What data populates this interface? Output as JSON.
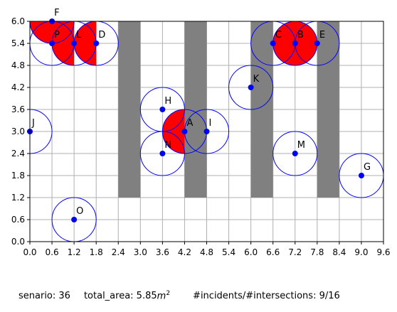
{
  "chart_data": {
    "type": "scatter",
    "xlim": [
      0,
      9.6
    ],
    "ylim": [
      0,
      6.0
    ],
    "grid": true,
    "x_ticks": [
      0.0,
      0.6,
      1.2,
      1.8,
      2.4,
      3.0,
      3.6,
      4.2,
      4.8,
      5.4,
      6.0,
      6.6,
      7.2,
      7.8,
      8.4,
      9.0,
      9.6
    ],
    "y_ticks": [
      0.0,
      0.6,
      1.2,
      1.8,
      2.4,
      3.0,
      3.6,
      4.2,
      4.8,
      5.4,
      6.0
    ],
    "x_tick_labels": [
      "0.0",
      "0.6",
      "1.2",
      "1.8",
      "2.4",
      "3.0",
      "3.6",
      "4.2",
      "4.8",
      "5.4",
      "6.0",
      "6.6",
      "7.2",
      "7.8",
      "8.4",
      "9.0",
      "9.6"
    ],
    "y_tick_labels": [
      "0.0",
      "0.6",
      "1.2",
      "1.8",
      "2.4",
      "3.0",
      "3.6",
      "4.2",
      "4.8",
      "5.4",
      "6.0"
    ],
    "circle_radius": 0.6,
    "point_color": "#0000ff",
    "circle_color": "#0000ff",
    "obstacle_color": "#808080",
    "overlap_color": "#ff0000",
    "grid_color": "#b0b0b0",
    "obstacles": [
      {
        "x0": 2.4,
        "x1": 3.0,
        "y0": 1.2,
        "y1": 6.0
      },
      {
        "x0": 4.2,
        "x1": 4.8,
        "y0": 1.2,
        "y1": 6.0
      },
      {
        "x0": 6.0,
        "x1": 6.6,
        "y0": 1.2,
        "y1": 6.0
      },
      {
        "x0": 7.8,
        "x1": 8.4,
        "y0": 1.2,
        "y1": 6.0
      }
    ],
    "points": [
      {
        "label": "F",
        "x": 0.6,
        "y": 6.0
      },
      {
        "label": "P",
        "x": 0.6,
        "y": 5.4
      },
      {
        "label": "L",
        "x": 1.2,
        "y": 5.4
      },
      {
        "label": "D",
        "x": 1.8,
        "y": 5.4
      },
      {
        "label": "C",
        "x": 6.6,
        "y": 5.4
      },
      {
        "label": "B",
        "x": 7.2,
        "y": 5.4
      },
      {
        "label": "E",
        "x": 7.8,
        "y": 5.4
      },
      {
        "label": "K",
        "x": 6.0,
        "y": 4.2
      },
      {
        "label": "H",
        "x": 3.6,
        "y": 3.6
      },
      {
        "label": "J",
        "x": 0.0,
        "y": 3.0
      },
      {
        "label": "A",
        "x": 4.2,
        "y": 3.0
      },
      {
        "label": "I",
        "x": 4.8,
        "y": 3.0
      },
      {
        "label": "N",
        "x": 3.6,
        "y": 2.4
      },
      {
        "label": "M",
        "x": 7.2,
        "y": 2.4
      },
      {
        "label": "G",
        "x": 9.0,
        "y": 1.8
      },
      {
        "label": "O",
        "x": 1.2,
        "y": 0.6
      }
    ],
    "overlap_regions": [
      {
        "cx": 0.6,
        "cy": 6.0,
        "minX": 0.0,
        "maxX": 1.2,
        "minY": 5.4,
        "maxY": 6.0
      },
      {
        "cx": 1.2,
        "cy": 5.4,
        "minX": 0.6,
        "maxX": 1.2,
        "minY": 4.8,
        "maxY": 6.0
      },
      {
        "cx": 1.8,
        "cy": 5.4,
        "minX": 1.2,
        "maxX": 1.8,
        "minY": 4.8,
        "maxY": 6.0
      },
      {
        "cx": 7.2,
        "cy": 5.4,
        "minX": 6.6,
        "maxX": 7.8,
        "minY": 4.8,
        "maxY": 6.0
      },
      {
        "cx": 4.2,
        "cy": 3.0,
        "minX": 3.6,
        "maxX": 4.2,
        "minY": 2.4,
        "maxY": 3.75
      }
    ]
  },
  "footer": {
    "scenario": "senario: 36",
    "total_area_prefix": "total_area: 5.85",
    "total_area_unit": "m",
    "total_area_exp": "2",
    "incidents": "#incidents/#intersections: 9/16"
  }
}
